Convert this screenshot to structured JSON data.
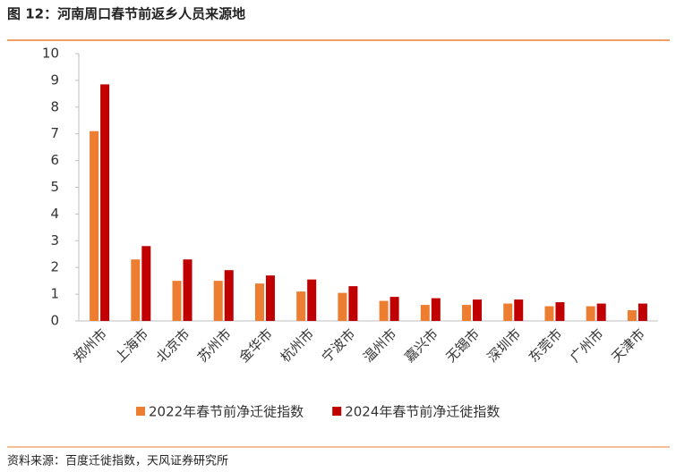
{
  "chart_data": {
    "type": "bar",
    "title": "图 12：河南周口春节前返乡人员来源地",
    "source": "资料来源：百度迁徙指数，天风证券研究所",
    "categories": [
      "郑州市",
      "上海市",
      "北京市",
      "苏州市",
      "金华市",
      "杭州市",
      "宁波市",
      "温州市",
      "嘉兴市",
      "无锡市",
      "深圳市",
      "东莞市",
      "广州市",
      "天津市"
    ],
    "series": [
      {
        "name": "2022年春节前净迁徙指数",
        "color": "#ED7D31",
        "values": [
          7.1,
          2.3,
          1.5,
          1.5,
          1.4,
          1.1,
          1.05,
          0.75,
          0.6,
          0.6,
          0.65,
          0.55,
          0.55,
          0.4
        ]
      },
      {
        "name": "2024年春节前净迁徙指数",
        "color": "#C00000",
        "values": [
          8.85,
          2.8,
          2.3,
          1.9,
          1.7,
          1.55,
          1.3,
          0.9,
          0.85,
          0.8,
          0.8,
          0.7,
          0.65,
          0.65
        ]
      }
    ],
    "ylim": [
      0,
      10
    ],
    "yticks": [
      0,
      1,
      2,
      3,
      4,
      5,
      6,
      7,
      8,
      9,
      10
    ],
    "grid": false,
    "legend": "bottom"
  }
}
